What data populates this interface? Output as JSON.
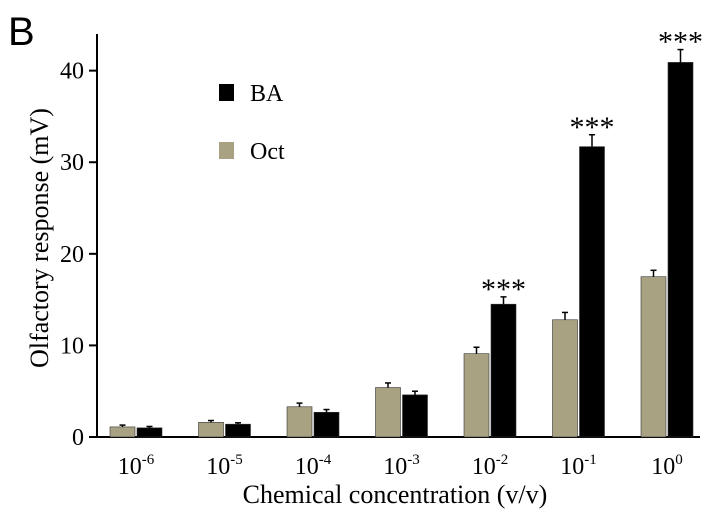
{
  "panel_label": "B",
  "colors": {
    "BA": "#000000",
    "Oct": "#a8a283",
    "axis": "#000000"
  },
  "chart_data": {
    "type": "bar",
    "xlabel": "Chemical concentration (v/v)",
    "ylabel": "Olfactory response (mV)",
    "ylim": [
      0,
      44
    ],
    "yticks": [
      0,
      10,
      20,
      30,
      40
    ],
    "grid": false,
    "legend_position": "top-left",
    "categories": [
      {
        "base": "10",
        "exp": "-6"
      },
      {
        "base": "10",
        "exp": "-5"
      },
      {
        "base": "10",
        "exp": "-4"
      },
      {
        "base": "10",
        "exp": "-3"
      },
      {
        "base": "10",
        "exp": "-2"
      },
      {
        "base": "10",
        "exp": "-1"
      },
      {
        "base": "10",
        "exp": "0"
      }
    ],
    "series": [
      {
        "name": "Oct",
        "values": [
          1.1,
          1.6,
          3.3,
          5.4,
          9.1,
          12.8,
          17.5
        ],
        "errors": [
          0.2,
          0.2,
          0.4,
          0.5,
          0.7,
          0.8,
          0.7
        ]
      },
      {
        "name": "BA",
        "values": [
          1.0,
          1.4,
          2.7,
          4.6,
          14.5,
          31.7,
          40.9
        ],
        "errors": [
          0.15,
          0.15,
          0.3,
          0.4,
          0.8,
          1.3,
          1.4
        ]
      }
    ],
    "annotations": [
      {
        "category_index": 4,
        "text": "***"
      },
      {
        "category_index": 5,
        "text": "***"
      },
      {
        "category_index": 6,
        "text": "***"
      }
    ]
  }
}
